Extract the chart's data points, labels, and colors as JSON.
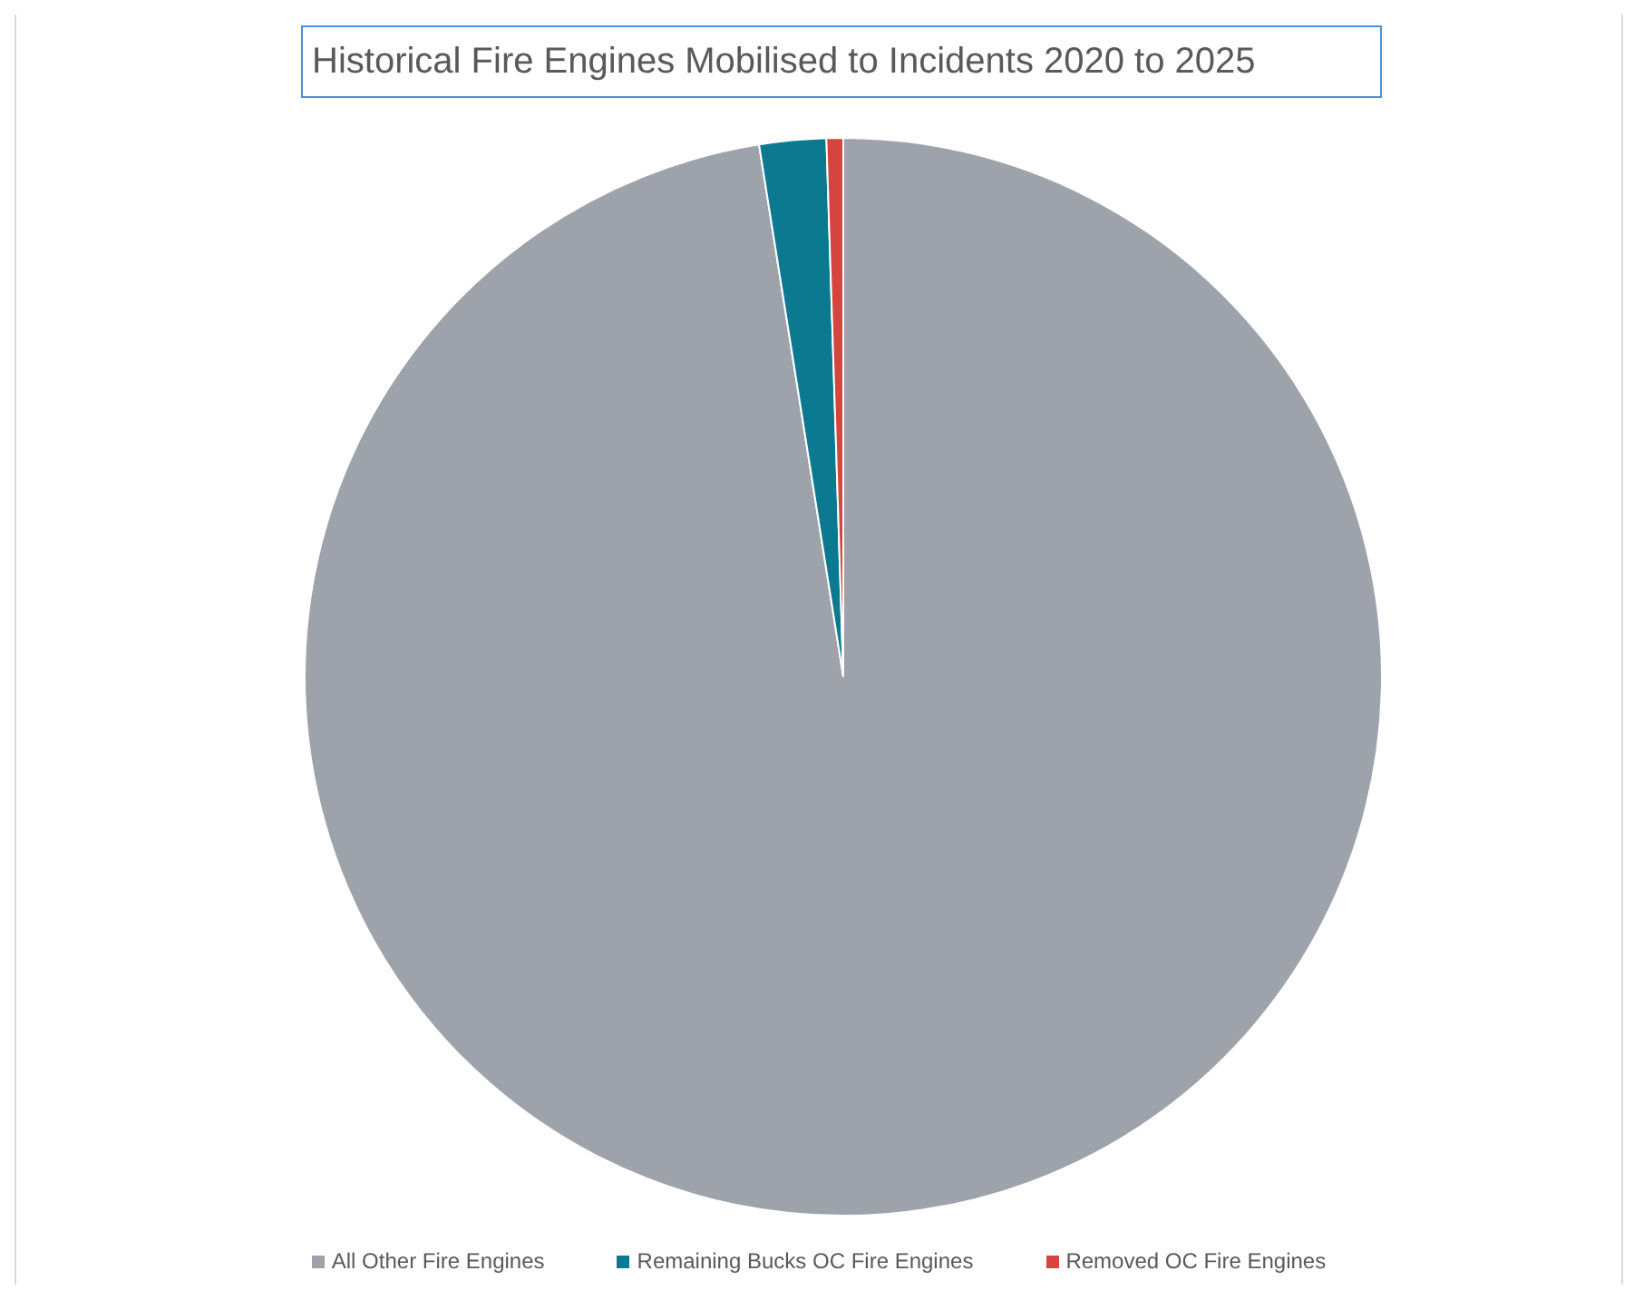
{
  "chart_data": {
    "type": "pie",
    "title": "Historical Fire Engines Mobilised to Incidents 2020 to 2025",
    "categories": [
      "All Other Fire Engines",
      "Remaining Bucks OC Fire Engines",
      "Removed OC Fire Engines"
    ],
    "values": [
      97.5,
      2,
      0.5
    ],
    "colors": [
      "#9ea3ab",
      "#0b7a91",
      "#d6453d"
    ],
    "legend": "bottom"
  }
}
